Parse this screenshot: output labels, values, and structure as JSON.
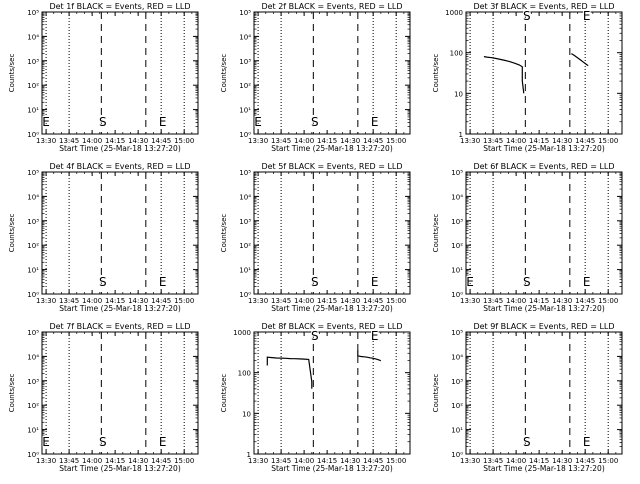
{
  "figure": {
    "panels": [
      {
        "title": "Det 1f BLACK = Events, RED = LLD",
        "ylabel": "Counts/sec",
        "xlabel": "Start Time (25-Mar-18 13:27:20)",
        "log_labels": false,
        "yticks": [
          "10⁰",
          "10¹",
          "10²",
          "10³",
          "10⁴",
          "10⁵"
        ]
      },
      {
        "title": "Det 2f BLACK = Events, RED = LLD",
        "ylabel": "Counts/sec",
        "xlabel": "Start Time (25-Mar-18 13:27:20)",
        "log_labels": false,
        "yticks": [
          "10⁰",
          "10¹",
          "10²",
          "10³",
          "10⁴",
          "10⁵"
        ]
      },
      {
        "title": "Det 3f BLACK = Events, RED = LLD",
        "ylabel": "Counts/sec",
        "xlabel": "Start Time (25-Mar-18 13:27:20)",
        "log_labels": true,
        "yticks": [
          "1",
          "10",
          "100",
          "1000"
        ]
      },
      {
        "title": "Det 4f BLACK = Events, RED = LLD",
        "ylabel": "Counts/sec",
        "xlabel": "Start Time (25-Mar-18 13:27:20)",
        "log_labels": false,
        "yticks": [
          "10⁰",
          "10¹",
          "10²",
          "10³",
          "10⁴",
          "10⁵"
        ]
      },
      {
        "title": "Det 5f BLACK = Events, RED = LLD",
        "ylabel": "Counts/sec",
        "xlabel": "Start Time (25-Mar-18 13:27:20)",
        "log_labels": false,
        "yticks": [
          "10⁰",
          "10¹",
          "10²",
          "10³",
          "10⁴",
          "10⁵"
        ]
      },
      {
        "title": "Det 6f BLACK = Events, RED = LLD",
        "ylabel": "Counts/sec",
        "xlabel": "Start Time (25-Mar-18 13:27:20)",
        "log_labels": false,
        "yticks": [
          "10⁰",
          "10¹",
          "10²",
          "10³",
          "10⁴",
          "10⁵"
        ]
      },
      {
        "title": "Det 7f BLACK = Events, RED = LLD",
        "ylabel": "Counts/sec",
        "xlabel": "Start Time (25-Mar-18 13:27:20)",
        "log_labels": false,
        "yticks": [
          "10⁰",
          "10¹",
          "10²",
          "10³",
          "10⁴",
          "10⁵"
        ]
      },
      {
        "title": "Det 8f BLACK = Events, RED = LLD",
        "ylabel": "Counts/sec",
        "xlabel": "Start Time (25-Mar-18 13:27:20)",
        "log_labels": true,
        "yticks": [
          "1",
          "10",
          "100",
          "1000"
        ]
      },
      {
        "title": "Det 9f BLACK = Events, RED = LLD",
        "ylabel": "Counts/sec",
        "xlabel": "Start Time (25-Mar-18 13:27:20)",
        "log_labels": false,
        "yticks": [
          "10⁰",
          "10¹",
          "10²",
          "10³",
          "10⁴",
          "10⁵"
        ]
      }
    ]
  },
  "chart_data": [
    {
      "type": "line",
      "title": "Det 1f BLACK = Events, RED = LLD",
      "xlabel": "Start Time (25-Mar-18 13:27:20)",
      "ylabel": "Counts/sec",
      "x_tick_labels": [
        "13:30",
        "13:45",
        "14:00",
        "14:15",
        "14:30",
        "14:45",
        "15:00"
      ],
      "y_scale": "log",
      "ylim": [
        1,
        100000
      ],
      "dotted_lines_at": [
        "13:30",
        "13:45",
        "14:45",
        "15:00"
      ],
      "dashed_lines_at": [
        "14:06",
        "14:35"
      ],
      "markers": [
        {
          "label": "E",
          "time": "13:30"
        },
        {
          "label": "S",
          "time": "14:07"
        },
        {
          "label": "E",
          "time": "14:46"
        }
      ],
      "series": []
    },
    {
      "type": "line",
      "title": "Det 2f BLACK = Events, RED = LLD",
      "xlabel": "Start Time (25-Mar-18 13:27:20)",
      "ylabel": "Counts/sec",
      "x_tick_labels": [
        "13:30",
        "13:45",
        "14:00",
        "14:15",
        "14:30",
        "14:45",
        "15:00"
      ],
      "y_scale": "log",
      "ylim": [
        1,
        100000
      ],
      "dotted_lines_at": [
        "13:30",
        "13:45",
        "14:45",
        "15:00"
      ],
      "dashed_lines_at": [
        "14:06",
        "14:35"
      ],
      "markers": [
        {
          "label": "E",
          "time": "13:30"
        },
        {
          "label": "S",
          "time": "14:07"
        },
        {
          "label": "E",
          "time": "14:46"
        }
      ],
      "series": []
    },
    {
      "type": "line",
      "title": "Det 3f BLACK = Events, RED = LLD",
      "xlabel": "Start Time (25-Mar-18 13:27:20)",
      "ylabel": "Counts/sec",
      "x_tick_labels": [
        "13:30",
        "13:45",
        "14:00",
        "14:15",
        "14:30",
        "14:45",
        "15:00"
      ],
      "y_scale": "log",
      "ylim": [
        1,
        1000
      ],
      "dotted_lines_at": [
        "13:30",
        "13:45",
        "14:45",
        "15:00"
      ],
      "dashed_lines_at": [
        "14:06",
        "14:35"
      ],
      "markers": [
        {
          "label": "S",
          "time": "14:07"
        },
        {
          "label": "E",
          "time": "14:46"
        }
      ],
      "series": [
        {
          "x": [
            "13:39",
            "13:41",
            "13:44",
            "13:47",
            "13:50",
            "13:53",
            "13:56",
            "13:59",
            "14:02",
            "14:04",
            "14:04",
            "14:05"
          ],
          "y": [
            80,
            78,
            75,
            72,
            68,
            64,
            60,
            55,
            50,
            45,
            20,
            10
          ]
        },
        {
          "x": [
            "14:36",
            "14:38",
            "14:40",
            "14:42",
            "14:44",
            "14:46",
            "14:47"
          ],
          "y": [
            95,
            85,
            75,
            66,
            58,
            51,
            48
          ]
        }
      ]
    },
    {
      "type": "line",
      "title": "Det 4f BLACK = Events, RED = LLD",
      "xlabel": "Start Time (25-Mar-18 13:27:20)",
      "ylabel": "Counts/sec",
      "x_tick_labels": [
        "13:30",
        "13:45",
        "14:00",
        "14:15",
        "14:30",
        "14:45",
        "15:00"
      ],
      "y_scale": "log",
      "ylim": [
        1,
        100000
      ],
      "dotted_lines_at": [
        "13:30",
        "13:45",
        "14:45",
        "15:00"
      ],
      "dashed_lines_at": [
        "14:06",
        "14:35"
      ],
      "markers": [
        {
          "label": "S",
          "time": "14:07"
        },
        {
          "label": "E",
          "time": "14:46"
        }
      ],
      "series": []
    },
    {
      "type": "line",
      "title": "Det 5f BLACK = Events, RED = LLD",
      "xlabel": "Start Time (25-Mar-18 13:27:20)",
      "ylabel": "Counts/sec",
      "x_tick_labels": [
        "13:30",
        "13:45",
        "14:00",
        "14:15",
        "14:30",
        "14:45",
        "15:00"
      ],
      "y_scale": "log",
      "ylim": [
        1,
        100000
      ],
      "dotted_lines_at": [
        "13:30",
        "13:45",
        "14:45",
        "15:00"
      ],
      "dashed_lines_at": [
        "14:06",
        "14:35"
      ],
      "markers": [
        {
          "label": "S",
          "time": "14:07"
        },
        {
          "label": "E",
          "time": "14:46"
        }
      ],
      "series": []
    },
    {
      "type": "line",
      "title": "Det 6f BLACK = Events, RED = LLD",
      "xlabel": "Start Time (25-Mar-18 13:27:20)",
      "ylabel": "Counts/sec",
      "x_tick_labels": [
        "13:30",
        "13:45",
        "14:00",
        "14:15",
        "14:30",
        "14:45",
        "15:00"
      ],
      "y_scale": "log",
      "ylim": [
        1,
        100000
      ],
      "dotted_lines_at": [
        "13:30",
        "13:45",
        "14:45",
        "15:00"
      ],
      "dashed_lines_at": [
        "14:06",
        "14:35"
      ],
      "markers": [
        {
          "label": "E",
          "time": "13:30"
        },
        {
          "label": "S",
          "time": "14:07"
        },
        {
          "label": "E",
          "time": "14:46"
        }
      ],
      "series": []
    },
    {
      "type": "line",
      "title": "Det 7f BLACK = Events, RED = LLD",
      "xlabel": "Start Time (25-Mar-18 13:27:20)",
      "ylabel": "Counts/sec",
      "x_tick_labels": [
        "13:30",
        "13:45",
        "14:00",
        "14:15",
        "14:30",
        "14:45",
        "15:00"
      ],
      "y_scale": "log",
      "ylim": [
        1,
        100000
      ],
      "dotted_lines_at": [
        "13:30",
        "13:45",
        "14:45",
        "15:00"
      ],
      "dashed_lines_at": [
        "14:06",
        "14:35"
      ],
      "markers": [
        {
          "label": "E",
          "time": "13:30"
        },
        {
          "label": "S",
          "time": "14:07"
        },
        {
          "label": "E",
          "time": "14:46"
        }
      ],
      "series": []
    },
    {
      "type": "line",
      "title": "Det 8f BLACK = Events, RED = LLD",
      "xlabel": "Start Time (25-Mar-18 13:27:20)",
      "ylabel": "Counts/sec",
      "x_tick_labels": [
        "13:30",
        "13:45",
        "14:00",
        "14:15",
        "14:30",
        "14:45",
        "15:00"
      ],
      "y_scale": "log",
      "ylim": [
        1,
        1000
      ],
      "dotted_lines_at": [
        "13:30",
        "13:45",
        "14:45",
        "15:00"
      ],
      "dashed_lines_at": [
        "14:06",
        "14:35"
      ],
      "markers": [
        {
          "label": "S",
          "time": "14:07"
        },
        {
          "label": "E",
          "time": "14:46"
        }
      ],
      "series": [
        {
          "x": [
            "13:36",
            "13:36",
            "13:39",
            "13:42",
            "13:45",
            "13:48",
            "13:51",
            "13:54",
            "13:57",
            "14:00",
            "14:03",
            "14:05",
            "14:05"
          ],
          "y": [
            150,
            240,
            235,
            230,
            228,
            225,
            222,
            220,
            218,
            215,
            212,
            60,
            40
          ]
        },
        {
          "x": [
            "14:35",
            "14:35",
            "14:37",
            "14:39",
            "14:41",
            "14:43",
            "14:45",
            "14:47",
            "14:49",
            "14:50"
          ],
          "y": [
            350,
            260,
            250,
            245,
            240,
            232,
            225,
            215,
            205,
            195
          ]
        }
      ]
    },
    {
      "type": "line",
      "title": "Det 9f BLACK = Events, RED = LLD",
      "xlabel": "Start Time (25-Mar-18 13:27:20)",
      "ylabel": "Counts/sec",
      "x_tick_labels": [
        "13:30",
        "13:45",
        "14:00",
        "14:15",
        "14:30",
        "14:45",
        "15:00"
      ],
      "y_scale": "log",
      "ylim": [
        1,
        100000
      ],
      "dotted_lines_at": [
        "13:30",
        "13:45",
        "14:45",
        "15:00"
      ],
      "dashed_lines_at": [
        "14:06",
        "14:35"
      ],
      "markers": [
        {
          "label": "S",
          "time": "14:07"
        },
        {
          "label": "E",
          "time": "14:46"
        }
      ],
      "series": []
    }
  ]
}
